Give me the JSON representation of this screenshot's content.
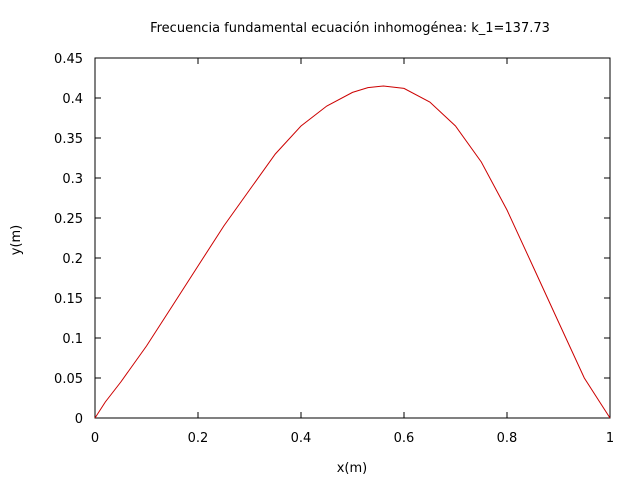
{
  "chart_data": {
    "type": "line",
    "title": "Frecuencia fundamental ecuación inhomogénea: k_1=137.73",
    "xlabel": "x(m)",
    "ylabel": "y(m)",
    "xlim": [
      0,
      1
    ],
    "ylim": [
      0,
      0.45
    ],
    "x_ticks": [
      0,
      0.2,
      0.4,
      0.6,
      0.8,
      1
    ],
    "x_tick_labels": [
      "0",
      "0.2",
      "0.4",
      "0.6",
      "0.8",
      "1"
    ],
    "y_ticks": [
      0,
      0.05,
      0.1,
      0.15,
      0.2,
      0.25,
      0.3,
      0.35,
      0.4,
      0.45
    ],
    "y_tick_labels": [
      "0",
      "0.05",
      "0.1",
      "0.15",
      "0.2",
      "0.25",
      "0.3",
      "0.35",
      "0.4",
      "0.45"
    ],
    "grid": false,
    "legend": "none",
    "series": [
      {
        "color": "#cc0000",
        "x": [
          0,
          0.02,
          0.05,
          0.1,
          0.15,
          0.2,
          0.25,
          0.3,
          0.35,
          0.4,
          0.45,
          0.5,
          0.53,
          0.56,
          0.6,
          0.65,
          0.7,
          0.75,
          0.8,
          0.85,
          0.9,
          0.95,
          0.98,
          1
        ],
        "y": [
          0,
          0.02,
          0.045,
          0.09,
          0.14,
          0.19,
          0.24,
          0.285,
          0.33,
          0.365,
          0.39,
          0.407,
          0.413,
          0.415,
          0.412,
          0.395,
          0.365,
          0.32,
          0.26,
          0.19,
          0.12,
          0.05,
          0.02,
          0
        ]
      }
    ]
  }
}
